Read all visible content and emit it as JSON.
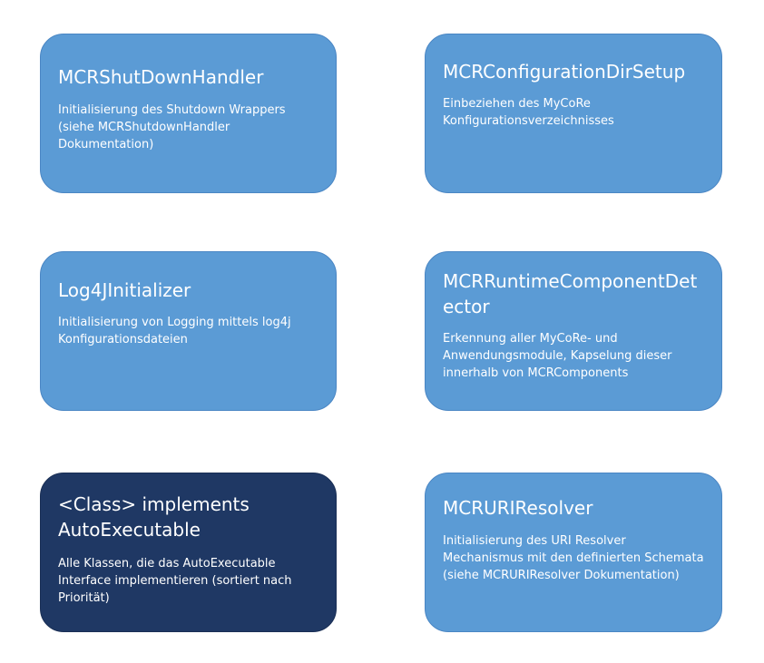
{
  "colors": {
    "box_fill": "#5b9bd5",
    "box_fill_highlight": "#1f3864",
    "text": "#ffffff"
  },
  "boxes": [
    {
      "title": "MCRShutDownHandler",
      "description": "Initialisierung des Shutdown Wrappers (siehe MCRShutdownHandler Dokumentation)"
    },
    {
      "title": "MCRConfigurationDirSetup",
      "description": "Einbeziehen des MyCoRe Konfigurationsverzeichnisses"
    },
    {
      "title": "Log4JInitializer",
      "description": "Initialisierung von Logging mittels log4j Konfigurationsdateien"
    },
    {
      "title": "MCRRuntimeComponentDetector",
      "description": "Erkennung aller MyCoRe- und Anwendungsmodule, Kapselung dieser innerhalb von MCRComponents"
    },
    {
      "title": "<Class> implements AutoExecutable",
      "description": "Alle Klassen, die das AutoExecutable Interface implementieren (sortiert nach Priorität)"
    },
    {
      "title": "MCRURIResolver",
      "description": "Initialisierung des URI Resolver Mechanismus mit den definierten Schemata (siehe MCRURIResolver Dokumentation)"
    }
  ]
}
